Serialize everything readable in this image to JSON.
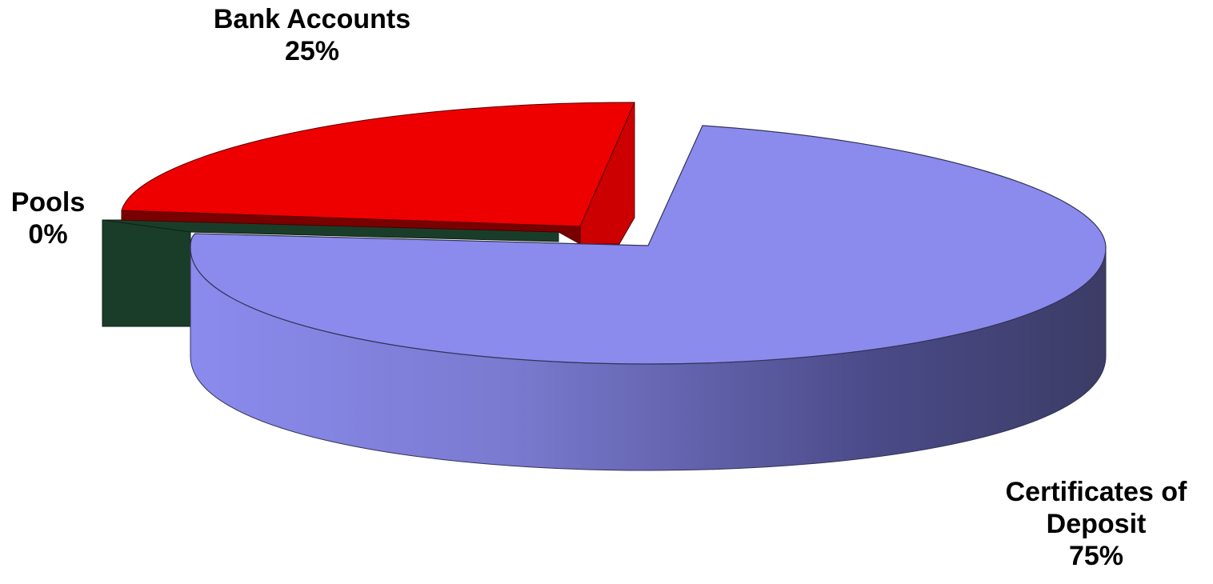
{
  "chart_data": {
    "type": "pie",
    "categories": [
      "Bank Accounts",
      "Pools",
      "Certificates of Deposit"
    ],
    "values": [
      25,
      0,
      75
    ],
    "value_labels": [
      "25%",
      "0%",
      "75%"
    ],
    "colors": {
      "bank_accounts": "#ee0000",
      "pools": "#1a3d2a",
      "certificates_of_deposit": "#8b8bee"
    },
    "title": "",
    "legend": "none"
  },
  "labels": {
    "bank_accounts_line1": "Bank Accounts",
    "bank_accounts_pct": "25%",
    "pools_line1": "Pools",
    "pools_pct": "0%",
    "cd_line1": "Certificates of",
    "cd_line2": "Deposit",
    "cd_pct": "75%"
  }
}
